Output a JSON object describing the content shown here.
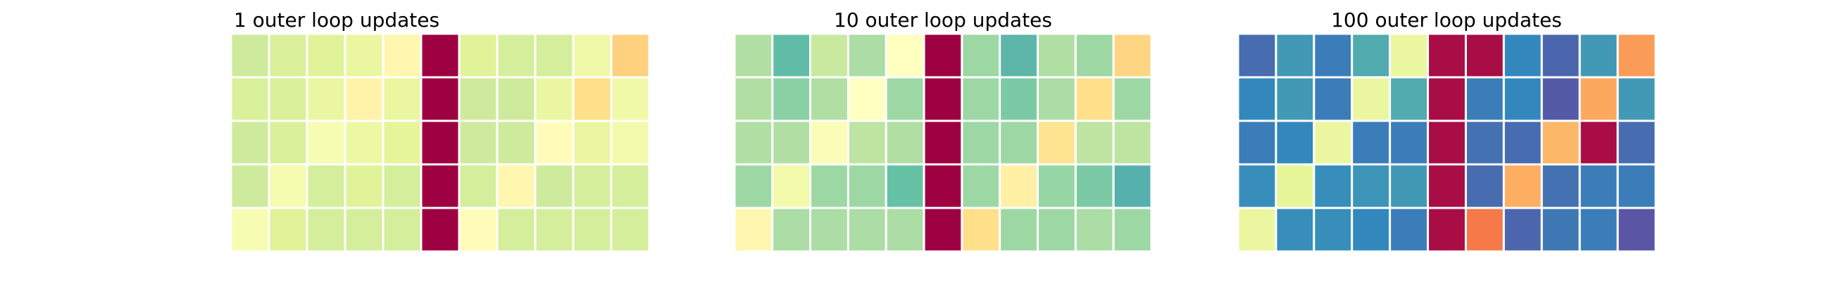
{
  "chart_data": [
    {
      "type": "heatmap",
      "title": "1 outer loop updates",
      "rows": 5,
      "cols": 11,
      "colormap": "Spectral",
      "value_range": [
        0,
        1
      ],
      "values": [
        [
          0.64,
          0.62,
          0.61,
          0.58,
          0.47,
          0.0,
          0.61,
          0.63,
          0.63,
          0.56,
          0.37
        ],
        [
          0.62,
          0.62,
          0.58,
          0.46,
          0.58,
          0.0,
          0.64,
          0.64,
          0.58,
          0.4,
          0.56
        ],
        [
          0.64,
          0.62,
          0.53,
          0.57,
          0.6,
          0.0,
          0.64,
          0.64,
          0.49,
          0.58,
          0.55
        ],
        [
          0.64,
          0.54,
          0.63,
          0.61,
          0.63,
          0.0,
          0.63,
          0.47,
          0.64,
          0.63,
          0.63
        ],
        [
          0.53,
          0.61,
          0.63,
          0.63,
          0.63,
          0.0,
          0.49,
          0.63,
          0.63,
          0.63,
          0.63
        ]
      ]
    },
    {
      "type": "heatmap",
      "title": "10 outer loop updates",
      "rows": 5,
      "cols": 11,
      "colormap": "Spectral",
      "value_range": [
        0,
        1
      ],
      "values": [
        [
          0.69,
          0.81,
          0.65,
          0.7,
          0.5,
          0.0,
          0.72,
          0.82,
          0.69,
          0.72,
          0.38
        ],
        [
          0.69,
          0.75,
          0.69,
          0.5,
          0.72,
          0.0,
          0.72,
          0.77,
          0.7,
          0.4,
          0.72
        ],
        [
          0.69,
          0.69,
          0.52,
          0.67,
          0.69,
          0.0,
          0.72,
          0.72,
          0.41,
          0.67,
          0.67
        ],
        [
          0.72,
          0.55,
          0.72,
          0.72,
          0.8,
          0.0,
          0.72,
          0.45,
          0.73,
          0.77,
          0.83
        ],
        [
          0.47,
          0.7,
          0.7,
          0.7,
          0.7,
          0.0,
          0.4,
          0.72,
          0.72,
          0.7,
          0.72
        ]
      ]
    },
    {
      "type": "heatmap",
      "title": "100 outer loop updates",
      "rows": 5,
      "cols": 11,
      "colormap": "Spectral",
      "value_range": [
        0,
        1
      ],
      "values": [
        [
          0.95,
          0.87,
          0.92,
          0.84,
          0.58,
          0.02,
          0.02,
          0.9,
          0.96,
          0.87,
          0.27
        ],
        [
          0.9,
          0.87,
          0.92,
          0.58,
          0.84,
          0.02,
          0.92,
          0.9,
          0.98,
          0.29,
          0.87
        ],
        [
          0.92,
          0.9,
          0.58,
          0.92,
          0.92,
          0.02,
          0.94,
          0.95,
          0.32,
          0.02,
          0.95
        ],
        [
          0.89,
          0.6,
          0.89,
          0.88,
          0.87,
          0.02,
          0.95,
          0.3,
          0.94,
          0.92,
          0.92
        ],
        [
          0.58,
          0.89,
          0.89,
          0.9,
          0.92,
          0.02,
          0.22,
          0.96,
          0.93,
          0.92,
          0.99
        ]
      ]
    }
  ]
}
